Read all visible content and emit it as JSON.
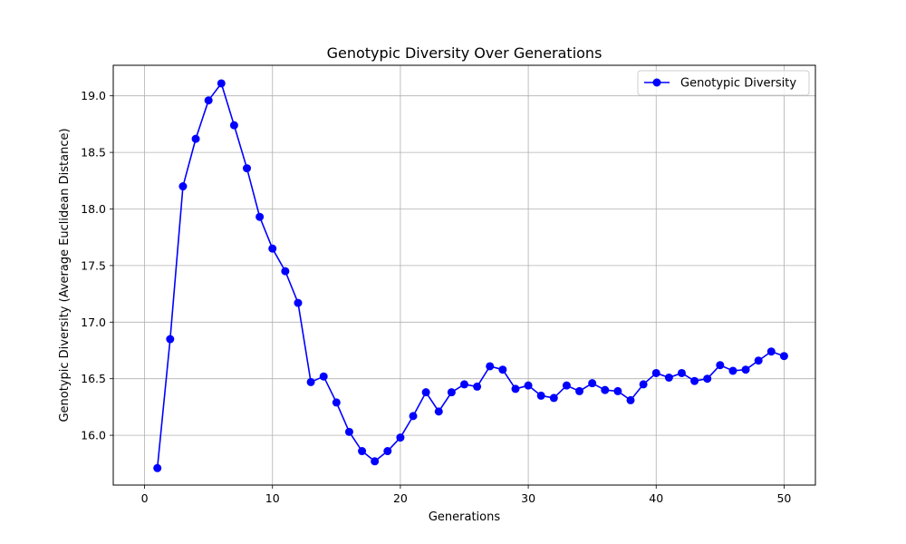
{
  "chart_data": {
    "type": "line",
    "title": "Genotypic Diversity Over Generations",
    "xlabel": "Generations",
    "ylabel": "Genotypic Diversity (Average Euclidean Distance)",
    "xlim": [
      -2.45,
      52.45
    ],
    "ylim": [
      15.56,
      19.27
    ],
    "x_ticks": [
      0,
      10,
      20,
      30,
      40,
      50
    ],
    "y_ticks": [
      16.0,
      16.5,
      17.0,
      17.5,
      18.0,
      18.5,
      19.0
    ],
    "x_tick_labels": [
      "0",
      "10",
      "20",
      "30",
      "40",
      "50"
    ],
    "y_tick_labels": [
      "16.0",
      "16.5",
      "17.0",
      "17.5",
      "18.0",
      "18.5",
      "19.0"
    ],
    "grid": true,
    "legend_position": "top-right",
    "series": [
      {
        "name": "Genotypic Diversity",
        "color": "#0000ff",
        "marker": "circle",
        "x": [
          1,
          2,
          3,
          4,
          5,
          6,
          7,
          8,
          9,
          10,
          11,
          12,
          13,
          14,
          15,
          16,
          17,
          18,
          19,
          20,
          21,
          22,
          23,
          24,
          25,
          26,
          27,
          28,
          29,
          30,
          31,
          32,
          33,
          34,
          35,
          36,
          37,
          38,
          39,
          40,
          41,
          42,
          43,
          44,
          45,
          46,
          47,
          48,
          49,
          50
        ],
        "y": [
          15.71,
          16.85,
          18.2,
          18.62,
          18.96,
          19.11,
          18.74,
          18.36,
          17.93,
          17.65,
          17.45,
          17.17,
          16.47,
          16.52,
          16.29,
          16.03,
          15.86,
          15.77,
          15.86,
          15.98,
          16.17,
          16.38,
          16.21,
          16.38,
          16.45,
          16.43,
          16.61,
          16.58,
          16.41,
          16.44,
          16.35,
          16.33,
          16.44,
          16.39,
          16.46,
          16.4,
          16.39,
          16.31,
          16.45,
          16.55,
          16.51,
          16.55,
          16.48,
          16.5,
          16.62,
          16.57,
          16.58,
          16.66,
          16.74,
          16.7
        ]
      }
    ]
  }
}
